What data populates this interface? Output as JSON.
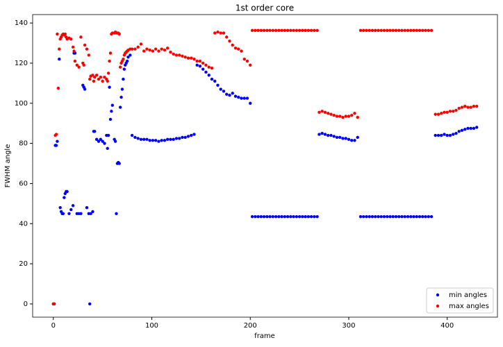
{
  "chart_data": {
    "type": "scatter",
    "title": "1st order core",
    "xlabel": "frame",
    "ylabel": "FWHM angle",
    "xlim": [
      -21,
      451
    ],
    "ylim": [
      -6.6,
      144.2
    ],
    "xticks": [
      0,
      100,
      200,
      300,
      400
    ],
    "yticks": [
      0,
      20,
      40,
      60,
      80,
      100,
      120,
      140
    ],
    "legend": "lower right",
    "x": [
      0,
      1,
      2,
      3,
      4,
      5,
      6,
      7,
      8,
      9,
      10,
      11,
      12,
      13,
      14,
      16,
      18,
      20,
      21,
      22,
      24,
      26,
      28,
      30,
      31,
      32,
      34,
      36,
      37,
      38,
      40,
      41,
      42,
      44,
      46,
      48,
      50,
      52,
      54,
      55,
      56,
      57,
      58,
      59,
      60,
      62,
      63,
      64,
      65,
      66,
      67,
      68,
      69,
      70,
      71,
      72,
      73,
      74,
      75,
      76,
      78,
      80,
      83,
      86,
      89,
      92,
      95,
      98,
      101,
      104,
      107,
      110,
      113,
      116,
      119,
      122,
      125,
      128,
      131,
      134,
      137,
      140,
      143,
      146,
      149,
      152,
      155,
      158,
      161,
      164,
      167,
      170,
      173,
      176,
      179,
      182,
      185,
      188,
      191,
      194,
      197,
      200,
      202,
      205,
      208,
      211,
      214,
      217,
      220,
      223,
      226,
      229,
      232,
      235,
      238,
      241,
      244,
      247,
      250,
      253,
      256,
      259,
      262,
      265,
      268,
      270,
      273,
      276,
      279,
      282,
      285,
      288,
      291,
      294,
      297,
      300,
      303,
      306,
      309,
      312,
      315,
      318,
      321,
      324,
      327,
      330,
      333,
      336,
      339,
      342,
      345,
      348,
      351,
      354,
      357,
      360,
      363,
      366,
      369,
      372,
      375,
      378,
      381,
      384,
      388,
      391,
      394,
      397,
      400,
      403,
      406,
      409,
      412,
      415,
      418,
      421,
      424,
      427,
      430
    ],
    "series": [
      {
        "name": "min angles",
        "color": "#0000ff",
        "values": [
          0,
          0,
          79,
          79,
          81,
          null,
          122,
          48,
          46,
          45,
          45,
          53,
          55,
          56,
          56,
          45,
          47,
          49,
          125,
          125,
          45,
          45,
          45,
          109,
          108,
          107,
          48,
          45,
          0,
          45,
          46,
          86,
          86,
          82,
          81,
          82,
          81,
          80,
          84,
          77.5,
          84,
          108,
          92,
          96,
          99,
          82,
          81,
          45,
          70,
          70.5,
          70,
          98,
          103,
          107,
          112,
          117,
          119,
          120,
          121,
          123,
          124,
          84,
          83,
          82.5,
          82,
          82,
          82,
          81.5,
          81.5,
          81.5,
          81,
          81.5,
          81.5,
          82,
          82,
          82,
          82.5,
          82.5,
          83,
          83,
          83.5,
          84,
          84.5,
          119,
          118.5,
          117,
          115.5,
          114,
          112,
          111,
          109,
          107,
          106,
          104.5,
          104,
          105,
          103.5,
          103,
          102.5,
          102.5,
          102.5,
          100,
          43.5,
          43.5,
          43.5,
          43.5,
          43.5,
          43.5,
          43.5,
          43.5,
          43.5,
          43.5,
          43.5,
          43.5,
          43.5,
          43.5,
          43.5,
          43.5,
          43.5,
          43.5,
          43.5,
          43.5,
          43.5,
          43.5,
          43.5,
          84.5,
          85,
          84.5,
          84,
          84,
          83.5,
          83,
          83,
          82.5,
          82.5,
          82,
          81.5,
          81.5,
          83,
          43.5,
          43.5,
          43.5,
          43.5,
          43.5,
          43.5,
          43.5,
          43.5,
          43.5,
          43.5,
          43.5,
          43.5,
          43.5,
          43.5,
          43.5,
          43.5,
          43.5,
          43.5,
          43.5,
          43.5,
          43.5,
          43.5,
          43.5,
          43.5,
          43.5,
          84,
          84,
          84,
          84.5,
          84,
          84,
          84.5,
          85,
          86,
          86.5,
          87,
          87.5,
          87.5,
          87.5,
          88
        ]
      },
      {
        "name": "max angles",
        "color": "#ff0000",
        "values": [
          0,
          0,
          84,
          84.5,
          134.5,
          107.5,
          127,
          132,
          133,
          134,
          134.5,
          134,
          134.5,
          133,
          132,
          132.5,
          132,
          128,
          126,
          121,
          119,
          118,
          133,
          120,
          119,
          129,
          127,
          124,
          112,
          113.5,
          114,
          111,
          113,
          114,
          112,
          113,
          111,
          113,
          112,
          111,
          115,
          121,
          125,
          134.5,
          135,
          135,
          135.5,
          135,
          135,
          135,
          134.5,
          118,
          120,
          121,
          122,
          124,
          125,
          125.5,
          126,
          126.5,
          127,
          127,
          127,
          128,
          129.5,
          126,
          127,
          126.5,
          126,
          127,
          126,
          127,
          126.5,
          127.5,
          125.5,
          124.5,
          124,
          124,
          123.5,
          123,
          122.5,
          122.5,
          122,
          121,
          121,
          120,
          119,
          118,
          117.5,
          135,
          135.5,
          135,
          135,
          133,
          131,
          129,
          127.5,
          127,
          126,
          122,
          121,
          119,
          136.3,
          136.3,
          136.3,
          136.3,
          136.3,
          136.3,
          136.3,
          136.3,
          136.3,
          136.3,
          136.3,
          136.3,
          136.3,
          136.3,
          136.3,
          136.3,
          136.3,
          136.3,
          136.3,
          136.3,
          136.3,
          136.3,
          136.3,
          95.5,
          96,
          95.5,
          95,
          94.5,
          94,
          93.5,
          93.5,
          93,
          93.5,
          93.5,
          94,
          95,
          93,
          136.3,
          136.3,
          136.3,
          136.3,
          136.3,
          136.3,
          136.3,
          136.3,
          136.3,
          136.3,
          136.3,
          136.3,
          136.3,
          136.3,
          136.3,
          136.3,
          136.3,
          136.3,
          136.3,
          136.3,
          136.3,
          136.3,
          136.3,
          136.3,
          136.3,
          94.5,
          94.5,
          95,
          95.5,
          95.5,
          96,
          96,
          96.5,
          97.5,
          98,
          98.5,
          98,
          98,
          98.5,
          98.5
        ]
      }
    ]
  }
}
